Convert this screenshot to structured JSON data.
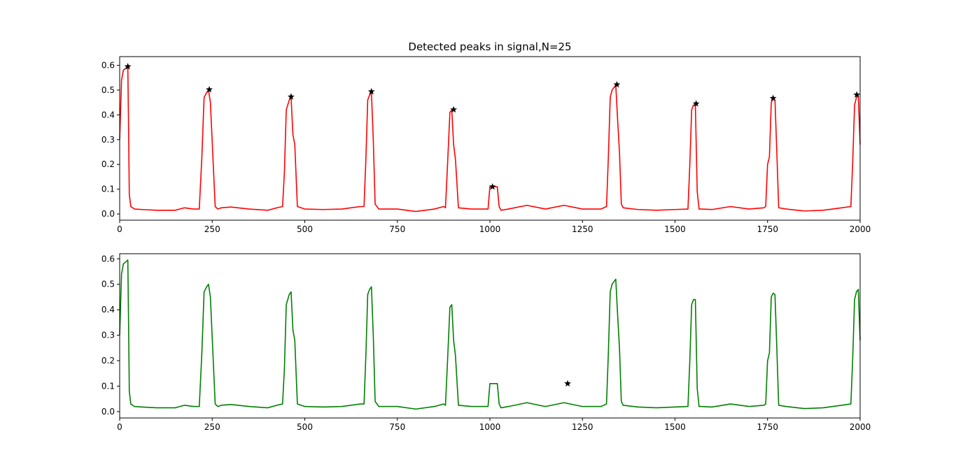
{
  "chart_data": [
    {
      "type": "line",
      "title": "Detected peaks in signal,N=25",
      "xlabel": "",
      "ylabel": "",
      "xlim": [
        0,
        2000
      ],
      "ylim": [
        -0.025,
        0.635
      ],
      "xticks": [
        0,
        250,
        500,
        750,
        1000,
        1250,
        1500,
        1750,
        2000
      ],
      "yticks": [
        0.0,
        0.1,
        0.2,
        0.3,
        0.4,
        0.5,
        0.6
      ],
      "xtick_labels": [
        "0",
        "250",
        "500",
        "750",
        "1000",
        "1250",
        "1500",
        "1750",
        "2000"
      ],
      "ytick_labels": [
        "0.0",
        "0.1",
        "0.2",
        "0.3",
        "0.4",
        "0.5",
        "0.6"
      ],
      "grid": false,
      "series": [
        {
          "color": "#ff0000",
          "x": [
            0,
            5,
            10,
            18,
            22,
            24,
            26,
            30,
            40,
            60,
            100,
            150,
            175,
            200,
            215,
            222,
            228,
            235,
            240,
            245,
            250,
            258,
            265,
            275,
            300,
            350,
            400,
            425,
            440,
            445,
            450,
            458,
            463,
            468,
            473,
            480,
            500,
            550,
            600,
            650,
            660,
            665,
            670,
            675,
            680,
            685,
            690,
            700,
            750,
            800,
            850,
            875,
            880,
            885,
            892,
            897,
            902,
            907,
            915,
            950,
            995,
            1000,
            1005,
            1010,
            1015,
            1020,
            1025,
            1030,
            1050,
            1100,
            1150,
            1200,
            1250,
            1300,
            1315,
            1320,
            1325,
            1330,
            1340,
            1345,
            1350,
            1355,
            1360,
            1400,
            1450,
            1500,
            1535,
            1540,
            1545,
            1550,
            1555,
            1560,
            1565,
            1570,
            1600,
            1650,
            1700,
            1740,
            1745,
            1750,
            1755,
            1760,
            1765,
            1770,
            1775,
            1780,
            1800,
            1850,
            1900,
            1950,
            1975,
            1980,
            1985,
            1990,
            1995,
            2000
          ],
          "y": [
            0.3,
            0.54,
            0.58,
            0.59,
            0.595,
            0.35,
            0.08,
            0.03,
            0.02,
            0.018,
            0.015,
            0.015,
            0.025,
            0.02,
            0.02,
            0.23,
            0.47,
            0.49,
            0.5,
            0.45,
            0.29,
            0.03,
            0.02,
            0.025,
            0.028,
            0.02,
            0.015,
            0.025,
            0.03,
            0.17,
            0.42,
            0.46,
            0.47,
            0.32,
            0.28,
            0.03,
            0.02,
            0.018,
            0.02,
            0.03,
            0.03,
            0.22,
            0.46,
            0.48,
            0.49,
            0.3,
            0.04,
            0.02,
            0.02,
            0.01,
            0.02,
            0.03,
            0.025,
            0.18,
            0.41,
            0.42,
            0.28,
            0.22,
            0.025,
            0.02,
            0.02,
            0.11,
            0.11,
            0.11,
            0.11,
            0.11,
            0.03,
            0.015,
            0.02,
            0.035,
            0.02,
            0.035,
            0.02,
            0.02,
            0.03,
            0.23,
            0.47,
            0.5,
            0.52,
            0.38,
            0.25,
            0.04,
            0.025,
            0.018,
            0.015,
            0.018,
            0.02,
            0.2,
            0.42,
            0.44,
            0.44,
            0.09,
            0.02,
            0.02,
            0.018,
            0.03,
            0.02,
            0.025,
            0.03,
            0.2,
            0.23,
            0.45,
            0.465,
            0.46,
            0.25,
            0.025,
            0.02,
            0.012,
            0.015,
            0.025,
            0.03,
            0.21,
            0.44,
            0.47,
            0.48,
            0.28
          ]
        }
      ],
      "markers": {
        "symbol": "star",
        "color": "#000000",
        "points": [
          {
            "x": 22,
            "y": 0.595
          },
          {
            "x": 242,
            "y": 0.502
          },
          {
            "x": 463,
            "y": 0.473
          },
          {
            "x": 680,
            "y": 0.494
          },
          {
            "x": 902,
            "y": 0.421
          },
          {
            "x": 1007,
            "y": 0.11
          },
          {
            "x": 1343,
            "y": 0.522
          },
          {
            "x": 1557,
            "y": 0.445
          },
          {
            "x": 1765,
            "y": 0.467
          },
          {
            "x": 1991,
            "y": 0.481
          }
        ]
      }
    },
    {
      "type": "line",
      "title": "",
      "xlabel": "",
      "ylabel": "",
      "xlim": [
        0,
        2000
      ],
      "ylim": [
        -0.025,
        0.62
      ],
      "xticks": [
        0,
        250,
        500,
        750,
        1000,
        1250,
        1500,
        1750,
        2000
      ],
      "yticks": [
        0.0,
        0.1,
        0.2,
        0.3,
        0.4,
        0.5,
        0.6
      ],
      "xtick_labels": [
        "0",
        "250",
        "500",
        "750",
        "1000",
        "1250",
        "1500",
        "1750",
        "2000"
      ],
      "ytick_labels": [
        "0.0",
        "0.1",
        "0.2",
        "0.3",
        "0.4",
        "0.5",
        "0.6"
      ],
      "grid": false,
      "series": [
        {
          "color": "#008000",
          "x": [
            0,
            5,
            10,
            18,
            22,
            24,
            26,
            30,
            40,
            60,
            100,
            150,
            175,
            200,
            215,
            222,
            228,
            235,
            240,
            245,
            250,
            258,
            265,
            275,
            300,
            350,
            400,
            425,
            440,
            445,
            450,
            458,
            463,
            468,
            473,
            480,
            500,
            550,
            600,
            650,
            660,
            665,
            670,
            675,
            680,
            685,
            690,
            700,
            750,
            800,
            850,
            875,
            880,
            885,
            892,
            897,
            902,
            907,
            915,
            950,
            995,
            1000,
            1005,
            1010,
            1015,
            1020,
            1025,
            1030,
            1050,
            1100,
            1150,
            1200,
            1250,
            1300,
            1315,
            1320,
            1325,
            1330,
            1340,
            1345,
            1350,
            1355,
            1360,
            1400,
            1450,
            1500,
            1535,
            1540,
            1545,
            1550,
            1555,
            1560,
            1565,
            1570,
            1600,
            1650,
            1700,
            1740,
            1745,
            1750,
            1755,
            1760,
            1765,
            1770,
            1775,
            1780,
            1800,
            1850,
            1900,
            1950,
            1975,
            1980,
            1985,
            1990,
            1995,
            2000
          ],
          "y": [
            0.3,
            0.54,
            0.58,
            0.59,
            0.595,
            0.35,
            0.08,
            0.03,
            0.02,
            0.018,
            0.015,
            0.015,
            0.025,
            0.02,
            0.02,
            0.23,
            0.47,
            0.49,
            0.5,
            0.45,
            0.29,
            0.03,
            0.02,
            0.025,
            0.028,
            0.02,
            0.015,
            0.025,
            0.03,
            0.17,
            0.42,
            0.46,
            0.47,
            0.32,
            0.28,
            0.03,
            0.02,
            0.018,
            0.02,
            0.03,
            0.03,
            0.22,
            0.46,
            0.48,
            0.49,
            0.3,
            0.04,
            0.02,
            0.02,
            0.01,
            0.02,
            0.03,
            0.025,
            0.18,
            0.41,
            0.42,
            0.28,
            0.22,
            0.025,
            0.02,
            0.02,
            0.11,
            0.11,
            0.11,
            0.11,
            0.11,
            0.03,
            0.015,
            0.02,
            0.035,
            0.02,
            0.035,
            0.02,
            0.02,
            0.03,
            0.23,
            0.47,
            0.5,
            0.52,
            0.38,
            0.25,
            0.04,
            0.025,
            0.018,
            0.015,
            0.018,
            0.02,
            0.2,
            0.42,
            0.44,
            0.44,
            0.09,
            0.02,
            0.02,
            0.018,
            0.03,
            0.02,
            0.025,
            0.03,
            0.2,
            0.23,
            0.45,
            0.465,
            0.46,
            0.25,
            0.025,
            0.02,
            0.012,
            0.015,
            0.025,
            0.03,
            0.21,
            0.44,
            0.47,
            0.48,
            0.28
          ]
        }
      ],
      "markers": {
        "symbol": "star",
        "color": "#000000",
        "points": [
          {
            "x": 1210,
            "y": 0.11
          }
        ]
      }
    }
  ]
}
